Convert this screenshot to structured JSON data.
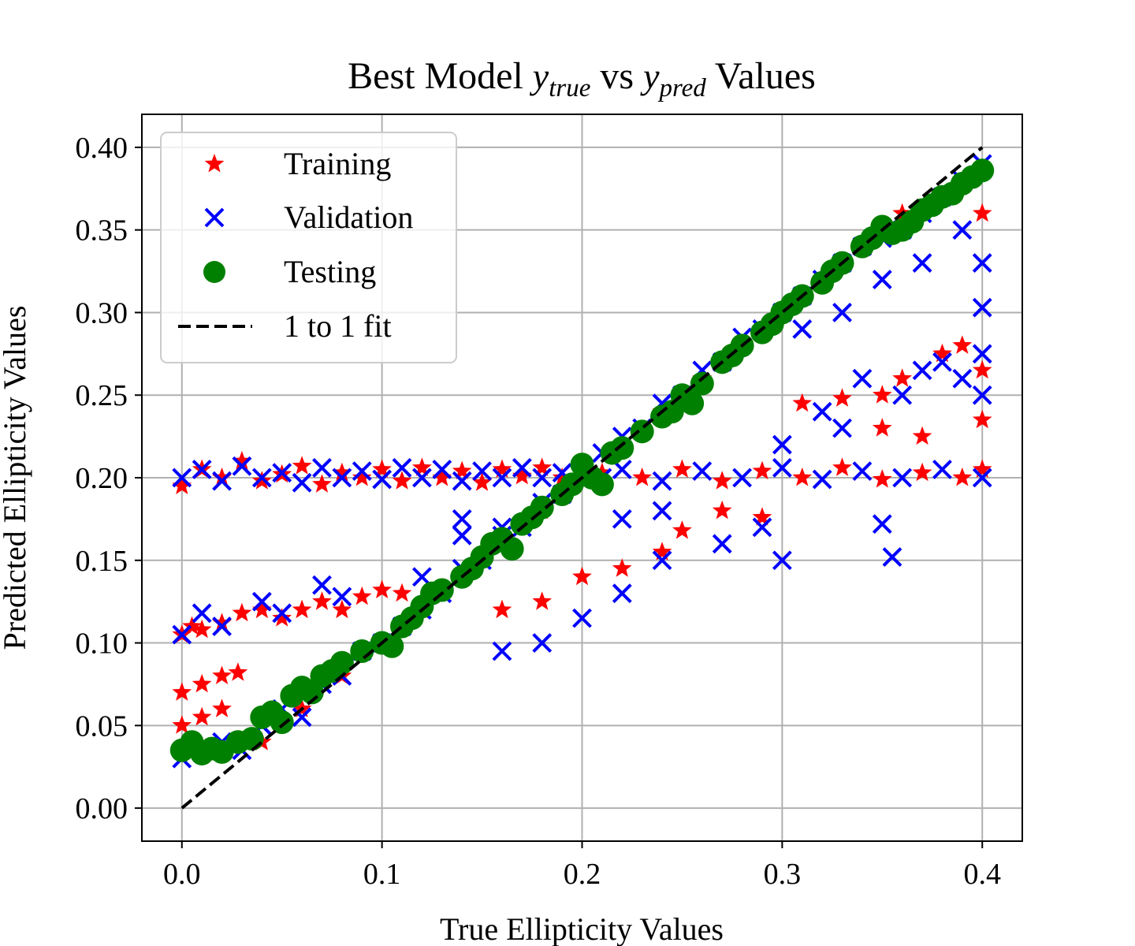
{
  "chart_data": {
    "type": "scatter",
    "title": {
      "prefix": "Best Model ",
      "var1": "y",
      "var1_sub": "true",
      "middle": " vs ",
      "var2": "y",
      "var2_sub": "pred",
      "suffix": " Values"
    },
    "xlabel": "True Ellipticity Values",
    "ylabel": "Predicted Ellipticity Values",
    "xlim": [
      -0.02,
      0.42
    ],
    "ylim": [
      -0.02,
      0.42
    ],
    "xticks": [
      0.0,
      0.1,
      0.2,
      0.3,
      0.4
    ],
    "xtick_labels": [
      "0.0",
      "0.1",
      "0.2",
      "0.3",
      "0.4"
    ],
    "yticks": [
      0.0,
      0.05,
      0.1,
      0.15,
      0.2,
      0.25,
      0.3,
      0.35,
      0.4
    ],
    "ytick_labels": [
      "0.00",
      "0.05",
      "0.10",
      "0.15",
      "0.20",
      "0.25",
      "0.30",
      "0.35",
      "0.40"
    ],
    "grid": true,
    "legend_position": "top-left",
    "series": [
      {
        "name": "Training",
        "marker": "star",
        "color": "#ff0000",
        "points": [
          [
            0.0,
            0.195
          ],
          [
            0.01,
            0.205
          ],
          [
            0.02,
            0.2
          ],
          [
            0.03,
            0.21
          ],
          [
            0.04,
            0.198
          ],
          [
            0.05,
            0.202
          ],
          [
            0.06,
            0.207
          ],
          [
            0.07,
            0.196
          ],
          [
            0.08,
            0.203
          ],
          [
            0.09,
            0.2
          ],
          [
            0.1,
            0.205
          ],
          [
            0.11,
            0.198
          ],
          [
            0.12,
            0.206
          ],
          [
            0.13,
            0.2
          ],
          [
            0.14,
            0.204
          ],
          [
            0.15,
            0.197
          ],
          [
            0.16,
            0.205
          ],
          [
            0.17,
            0.201
          ],
          [
            0.18,
            0.206
          ],
          [
            0.19,
            0.2
          ],
          [
            0.21,
            0.203
          ],
          [
            0.23,
            0.2
          ],
          [
            0.25,
            0.205
          ],
          [
            0.27,
            0.198
          ],
          [
            0.29,
            0.204
          ],
          [
            0.31,
            0.2
          ],
          [
            0.33,
            0.206
          ],
          [
            0.35,
            0.199
          ],
          [
            0.37,
            0.203
          ],
          [
            0.39,
            0.2
          ],
          [
            0.4,
            0.205
          ],
          [
            0.0,
            0.105
          ],
          [
            0.005,
            0.11
          ],
          [
            0.01,
            0.108
          ],
          [
            0.02,
            0.112
          ],
          [
            0.03,
            0.118
          ],
          [
            0.04,
            0.12
          ],
          [
            0.05,
            0.115
          ],
          [
            0.06,
            0.12
          ],
          [
            0.07,
            0.125
          ],
          [
            0.08,
            0.12
          ],
          [
            0.09,
            0.128
          ],
          [
            0.1,
            0.132
          ],
          [
            0.11,
            0.13
          ],
          [
            0.0,
            0.07
          ],
          [
            0.01,
            0.075
          ],
          [
            0.02,
            0.08
          ],
          [
            0.028,
            0.082
          ],
          [
            0.0,
            0.05
          ],
          [
            0.01,
            0.055
          ],
          [
            0.02,
            0.06
          ],
          [
            0.04,
            0.04
          ],
          [
            0.06,
            0.06
          ],
          [
            0.08,
            0.08
          ],
          [
            0.1,
            0.1
          ],
          [
            0.12,
            0.12
          ],
          [
            0.14,
            0.14
          ],
          [
            0.16,
            0.16
          ],
          [
            0.18,
            0.18
          ],
          [
            0.2,
            0.2
          ],
          [
            0.22,
            0.22
          ],
          [
            0.24,
            0.24
          ],
          [
            0.26,
            0.26
          ],
          [
            0.28,
            0.28
          ],
          [
            0.3,
            0.3
          ],
          [
            0.32,
            0.32
          ],
          [
            0.34,
            0.34
          ],
          [
            0.36,
            0.36
          ],
          [
            0.38,
            0.37
          ],
          [
            0.4,
            0.36
          ],
          [
            0.16,
            0.12
          ],
          [
            0.18,
            0.125
          ],
          [
            0.2,
            0.14
          ],
          [
            0.22,
            0.145
          ],
          [
            0.24,
            0.155
          ],
          [
            0.25,
            0.168
          ],
          [
            0.27,
            0.18
          ],
          [
            0.29,
            0.176
          ],
          [
            0.31,
            0.245
          ],
          [
            0.33,
            0.248
          ],
          [
            0.35,
            0.25
          ],
          [
            0.36,
            0.26
          ],
          [
            0.38,
            0.275
          ],
          [
            0.39,
            0.28
          ],
          [
            0.4,
            0.265
          ],
          [
            0.4,
            0.235
          ],
          [
            0.37,
            0.225
          ],
          [
            0.35,
            0.23
          ]
        ]
      },
      {
        "name": "Validation",
        "marker": "x",
        "color": "#0000ff",
        "points": [
          [
            0.0,
            0.2
          ],
          [
            0.01,
            0.205
          ],
          [
            0.02,
            0.198
          ],
          [
            0.03,
            0.207
          ],
          [
            0.04,
            0.2
          ],
          [
            0.05,
            0.203
          ],
          [
            0.06,
            0.197
          ],
          [
            0.07,
            0.206
          ],
          [
            0.08,
            0.2
          ],
          [
            0.09,
            0.204
          ],
          [
            0.1,
            0.199
          ],
          [
            0.11,
            0.206
          ],
          [
            0.12,
            0.2
          ],
          [
            0.13,
            0.205
          ],
          [
            0.14,
            0.198
          ],
          [
            0.15,
            0.204
          ],
          [
            0.16,
            0.2
          ],
          [
            0.17,
            0.206
          ],
          [
            0.18,
            0.2
          ],
          [
            0.19,
            0.203
          ],
          [
            0.21,
            0.2
          ],
          [
            0.22,
            0.205
          ],
          [
            0.24,
            0.198
          ],
          [
            0.26,
            0.204
          ],
          [
            0.28,
            0.2
          ],
          [
            0.3,
            0.206
          ],
          [
            0.32,
            0.199
          ],
          [
            0.34,
            0.204
          ],
          [
            0.36,
            0.2
          ],
          [
            0.38,
            0.205
          ],
          [
            0.4,
            0.2
          ],
          [
            0.0,
            0.03
          ],
          [
            0.01,
            0.035
          ],
          [
            0.02,
            0.04
          ],
          [
            0.03,
            0.035
          ],
          [
            0.04,
            0.05
          ],
          [
            0.05,
            0.06
          ],
          [
            0.06,
            0.055
          ],
          [
            0.07,
            0.075
          ],
          [
            0.08,
            0.08
          ],
          [
            0.09,
            0.095
          ],
          [
            0.1,
            0.1
          ],
          [
            0.11,
            0.11
          ],
          [
            0.12,
            0.12
          ],
          [
            0.13,
            0.13
          ],
          [
            0.14,
            0.145
          ],
          [
            0.15,
            0.15
          ],
          [
            0.16,
            0.165
          ],
          [
            0.17,
            0.17
          ],
          [
            0.18,
            0.185
          ],
          [
            0.19,
            0.19
          ],
          [
            0.2,
            0.2
          ],
          [
            0.21,
            0.215
          ],
          [
            0.22,
            0.225
          ],
          [
            0.23,
            0.23
          ],
          [
            0.24,
            0.245
          ],
          [
            0.25,
            0.25
          ],
          [
            0.26,
            0.265
          ],
          [
            0.27,
            0.27
          ],
          [
            0.28,
            0.285
          ],
          [
            0.29,
            0.29
          ],
          [
            0.3,
            0.3
          ],
          [
            0.31,
            0.31
          ],
          [
            0.32,
            0.32
          ],
          [
            0.33,
            0.33
          ],
          [
            0.34,
            0.34
          ],
          [
            0.35,
            0.345
          ],
          [
            0.36,
            0.35
          ],
          [
            0.37,
            0.36
          ],
          [
            0.38,
            0.37
          ],
          [
            0.39,
            0.38
          ],
          [
            0.4,
            0.39
          ],
          [
            0.0,
            0.105
          ],
          [
            0.01,
            0.118
          ],
          [
            0.02,
            0.11
          ],
          [
            0.04,
            0.125
          ],
          [
            0.05,
            0.118
          ],
          [
            0.07,
            0.135
          ],
          [
            0.08,
            0.128
          ],
          [
            0.12,
            0.14
          ],
          [
            0.14,
            0.165
          ],
          [
            0.14,
            0.175
          ],
          [
            0.16,
            0.17
          ],
          [
            0.16,
            0.095
          ],
          [
            0.18,
            0.1
          ],
          [
            0.2,
            0.115
          ],
          [
            0.22,
            0.13
          ],
          [
            0.24,
            0.15
          ],
          [
            0.27,
            0.16
          ],
          [
            0.29,
            0.17
          ],
          [
            0.22,
            0.175
          ],
          [
            0.24,
            0.18
          ],
          [
            0.3,
            0.15
          ],
          [
            0.35,
            0.172
          ],
          [
            0.355,
            0.152
          ],
          [
            0.3,
            0.22
          ],
          [
            0.32,
            0.24
          ],
          [
            0.33,
            0.23
          ],
          [
            0.34,
            0.26
          ],
          [
            0.36,
            0.25
          ],
          [
            0.37,
            0.265
          ],
          [
            0.38,
            0.27
          ],
          [
            0.39,
            0.26
          ],
          [
            0.4,
            0.25
          ],
          [
            0.4,
            0.275
          ],
          [
            0.4,
            0.303
          ],
          [
            0.31,
            0.29
          ],
          [
            0.33,
            0.3
          ],
          [
            0.35,
            0.32
          ],
          [
            0.37,
            0.33
          ],
          [
            0.39,
            0.35
          ],
          [
            0.4,
            0.33
          ]
        ]
      },
      {
        "name": "Testing",
        "marker": "circle",
        "color": "#008000",
        "points": [
          [
            0.0,
            0.035
          ],
          [
            0.005,
            0.04
          ],
          [
            0.01,
            0.033
          ],
          [
            0.015,
            0.036
          ],
          [
            0.02,
            0.034
          ],
          [
            0.028,
            0.04
          ],
          [
            0.035,
            0.042
          ],
          [
            0.04,
            0.055
          ],
          [
            0.045,
            0.058
          ],
          [
            0.05,
            0.052
          ],
          [
            0.055,
            0.068
          ],
          [
            0.06,
            0.073
          ],
          [
            0.065,
            0.07
          ],
          [
            0.07,
            0.08
          ],
          [
            0.075,
            0.083
          ],
          [
            0.08,
            0.088
          ],
          [
            0.09,
            0.095
          ],
          [
            0.1,
            0.1
          ],
          [
            0.105,
            0.098
          ],
          [
            0.11,
            0.11
          ],
          [
            0.115,
            0.115
          ],
          [
            0.12,
            0.122
          ],
          [
            0.125,
            0.13
          ],
          [
            0.13,
            0.132
          ],
          [
            0.14,
            0.14
          ],
          [
            0.145,
            0.145
          ],
          [
            0.15,
            0.152
          ],
          [
            0.155,
            0.16
          ],
          [
            0.16,
            0.163
          ],
          [
            0.165,
            0.157
          ],
          [
            0.17,
            0.172
          ],
          [
            0.175,
            0.176
          ],
          [
            0.18,
            0.182
          ],
          [
            0.19,
            0.19
          ],
          [
            0.195,
            0.196
          ],
          [
            0.2,
            0.208
          ],
          [
            0.205,
            0.2
          ],
          [
            0.21,
            0.196
          ],
          [
            0.215,
            0.215
          ],
          [
            0.22,
            0.218
          ],
          [
            0.23,
            0.228
          ],
          [
            0.24,
            0.237
          ],
          [
            0.245,
            0.24
          ],
          [
            0.25,
            0.25
          ],
          [
            0.255,
            0.245
          ],
          [
            0.26,
            0.257
          ],
          [
            0.27,
            0.27
          ],
          [
            0.275,
            0.274
          ],
          [
            0.28,
            0.28
          ],
          [
            0.29,
            0.288
          ],
          [
            0.295,
            0.293
          ],
          [
            0.3,
            0.3
          ],
          [
            0.305,
            0.305
          ],
          [
            0.31,
            0.31
          ],
          [
            0.32,
            0.318
          ],
          [
            0.325,
            0.325
          ],
          [
            0.33,
            0.33
          ],
          [
            0.34,
            0.34
          ],
          [
            0.345,
            0.345
          ],
          [
            0.35,
            0.352
          ],
          [
            0.355,
            0.348
          ],
          [
            0.36,
            0.35
          ],
          [
            0.365,
            0.355
          ],
          [
            0.37,
            0.362
          ],
          [
            0.375,
            0.365
          ],
          [
            0.38,
            0.37
          ],
          [
            0.385,
            0.372
          ],
          [
            0.39,
            0.378
          ],
          [
            0.395,
            0.382
          ],
          [
            0.4,
            0.386
          ]
        ]
      }
    ],
    "reference_line": {
      "name": "1 to 1 fit",
      "color": "#000000",
      "style": "dashed",
      "points": [
        [
          0.0,
          0.0
        ],
        [
          0.4,
          0.4
        ]
      ]
    }
  }
}
